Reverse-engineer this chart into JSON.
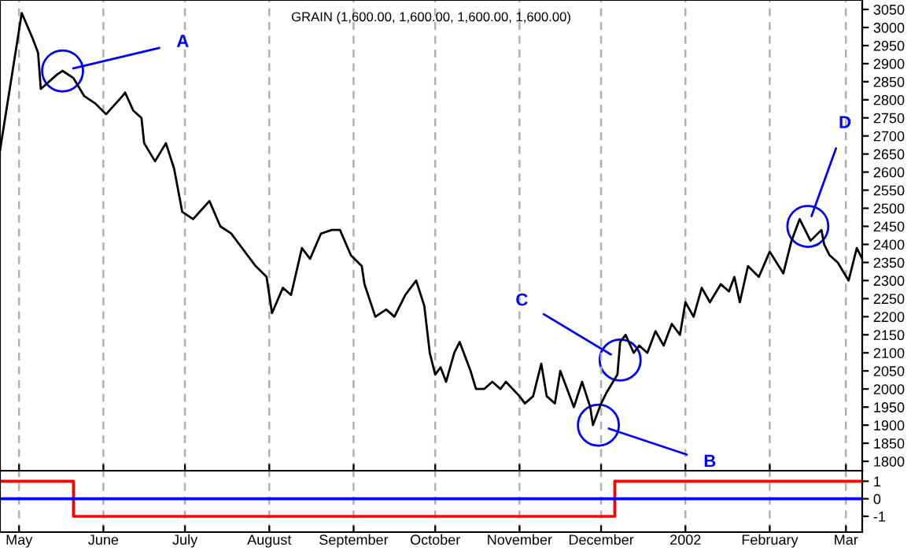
{
  "chart_data": [
    {
      "type": "line",
      "title": "GRAIN (1,600.00, 1,600.00, 1,600.00, 1,600.00)",
      "series": [
        {
          "color": "#000000",
          "x": [
            "2001-04-24",
            "2001-05-02",
            "2001-05-06",
            "2001-05-08",
            "2001-05-09",
            "2001-05-15",
            "2001-05-17",
            "2001-05-21",
            "2001-05-25",
            "2001-05-29",
            "2001-06-02",
            "2001-06-08",
            "2001-06-09",
            "2001-06-12",
            "2001-06-15",
            "2001-06-16",
            "2001-06-20",
            "2001-06-24",
            "2001-06-27",
            "2001-06-30",
            "2001-07-04",
            "2001-07-10",
            "2001-07-14",
            "2001-07-18",
            "2001-07-21",
            "2001-07-27",
            "2001-07-31",
            "2001-08-02",
            "2001-08-06",
            "2001-08-09",
            "2001-08-13",
            "2001-08-16",
            "2001-08-20",
            "2001-08-24",
            "2001-08-27",
            "2001-08-31",
            "2001-09-04",
            "2001-09-05",
            "2001-09-09",
            "2001-09-13",
            "2001-09-16",
            "2001-09-20",
            "2001-09-24",
            "2001-09-27",
            "2001-09-29",
            "2001-10-01",
            "2001-10-03",
            "2001-10-05",
            "2001-10-08",
            "2001-10-10",
            "2001-10-14",
            "2001-10-16",
            "2001-10-19",
            "2001-10-22",
            "2001-10-25",
            "2001-10-27",
            "2001-11-01",
            "2001-11-03",
            "2001-11-06",
            "2001-11-09",
            "2001-11-11",
            "2001-11-14",
            "2001-11-16",
            "2001-11-19",
            "2001-11-21",
            "2001-11-24",
            "2001-11-27",
            "2001-11-28",
            "2001-12-01",
            "2001-12-03",
            "2001-12-07",
            "2001-12-08",
            "2001-12-10",
            "2001-12-13",
            "2001-12-15",
            "2001-12-18",
            "2001-12-21",
            "2001-12-24",
            "2001-12-27",
            "2001-12-30",
            "2002-01-01",
            "2002-01-04",
            "2002-01-07",
            "2002-01-10",
            "2002-01-14",
            "2002-01-17",
            "2002-01-19",
            "2002-01-21",
            "2002-01-24",
            "2002-01-28",
            "2002-02-01",
            "2002-02-06",
            "2002-02-09",
            "2002-02-12",
            "2002-02-16",
            "2002-02-20",
            "2002-02-21",
            "2002-02-23",
            "2002-02-26",
            "2002-03-02",
            "2002-03-05",
            "2002-03-07"
          ],
          "values": [
            2660,
            3040,
            2970,
            2930,
            2830,
            2870,
            2880,
            2860,
            2810,
            2790,
            2760,
            2810,
            2820,
            2770,
            2750,
            2680,
            2630,
            2680,
            2610,
            2490,
            2470,
            2520,
            2450,
            2430,
            2400,
            2340,
            2310,
            2210,
            2280,
            2260,
            2390,
            2360,
            2430,
            2440,
            2440,
            2370,
            2340,
            2290,
            2200,
            2220,
            2200,
            2260,
            2300,
            2230,
            2100,
            2040,
            2060,
            2020,
            2100,
            2130,
            2050,
            2000,
            2000,
            2020,
            2000,
            2020,
            1980,
            1960,
            1980,
            2070,
            1980,
            1960,
            2050,
            1990,
            1950,
            2020,
            1950,
            1900,
            1960,
            1990,
            2040,
            2130,
            2150,
            2100,
            2120,
            2100,
            2160,
            2120,
            2180,
            2150,
            2240,
            2200,
            2280,
            2240,
            2290,
            2270,
            2310,
            2240,
            2340,
            2310,
            2380,
            2320,
            2410,
            2470,
            2410,
            2440,
            2400,
            2370,
            2350,
            2300,
            2390,
            2360
          ]
        }
      ],
      "xlim": [
        "2001-04-24",
        "2002-03-07"
      ],
      "xticks": [
        {
          "value": "2001-05-01",
          "label": null
        },
        {
          "value": "2001-06-01",
          "label": null
        },
        {
          "value": "2001-07-01",
          "label": null
        },
        {
          "value": "2001-08-01",
          "label": null
        },
        {
          "value": "2001-09-01",
          "label": null
        },
        {
          "value": "2001-10-01",
          "label": null
        },
        {
          "value": "2001-11-01",
          "label": null
        },
        {
          "value": "2001-12-01",
          "label": null
        },
        {
          "value": "2002-01-01",
          "label": null
        },
        {
          "value": "2002-02-01",
          "label": null
        },
        {
          "value": "2002-03-01",
          "label": null
        }
      ],
      "ylim": [
        1774,
        3076
      ],
      "yticks": [
        1800,
        1850,
        1900,
        1950,
        2000,
        2050,
        2100,
        2150,
        2200,
        2250,
        2300,
        2350,
        2400,
        2450,
        2500,
        2550,
        2600,
        2650,
        2700,
        2750,
        2800,
        2850,
        2900,
        2950,
        3000,
        3050
      ],
      "grid": "x",
      "tick_labels": "y",
      "annotations": [
        {
          "text": "A",
          "x": "2001-05-17",
          "y": 2880
        },
        {
          "text": "B",
          "x": "2001-11-30",
          "y": 1900
        },
        {
          "text": "C",
          "x": "2001-12-08",
          "y": 2080
        },
        {
          "text": "D",
          "x": "2002-02-15",
          "y": 2450
        }
      ]
    },
    {
      "type": "step",
      "series": [
        {
          "color": "#ff0000",
          "x": [
            "2001-04-24",
            "2001-05-21",
            "2001-12-06",
            "2002-03-07"
          ],
          "values": [
            1,
            -1,
            1,
            1
          ]
        }
      ],
      "xlim": [
        "2001-04-24",
        "2002-03-07"
      ],
      "xticks": [
        {
          "value": "2001-05-01",
          "label": "May"
        },
        {
          "value": "2001-06-01",
          "label": "June"
        },
        {
          "value": "2001-07-01",
          "label": "July"
        },
        {
          "value": "2001-08-01",
          "label": "August"
        },
        {
          "value": "2001-09-01",
          "label": "September"
        },
        {
          "value": "2001-10-01",
          "label": "October"
        },
        {
          "value": "2001-11-01",
          "label": "November"
        },
        {
          "value": "2001-12-01",
          "label": "December"
        },
        {
          "value": "2002-01-01",
          "label": "2002"
        },
        {
          "value": "2002-02-01",
          "label": "February"
        },
        {
          "value": "2002-03-01",
          "label": "Mar"
        }
      ],
      "ylim": [
        -1.9,
        1.6
      ],
      "yticks": [
        -1,
        0,
        1
      ],
      "grid": "x",
      "ref_lines": [
        {
          "axis": "y",
          "value": 0,
          "color": "#0000ff"
        }
      ]
    }
  ]
}
